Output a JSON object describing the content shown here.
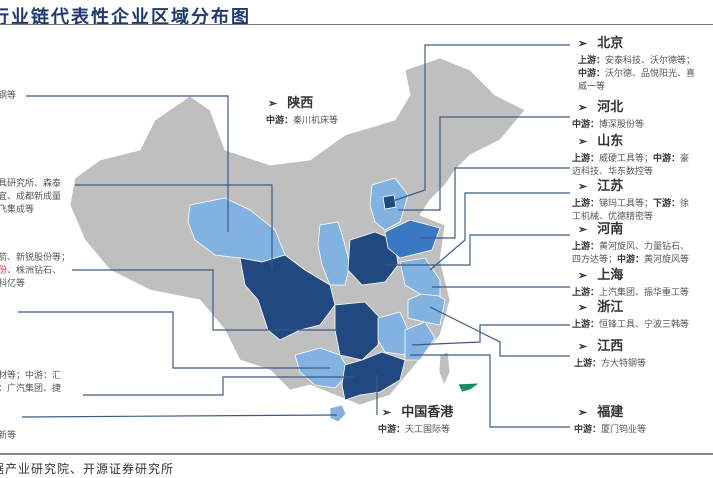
{
  "title": "行业链代表性企业区域分布图",
  "source": "据产业研究院、开源证券研究所",
  "colors": {
    "dark": "#21497f",
    "mid": "#3a78c3",
    "light": "#82b2e0",
    "gray": "#bfbfbf",
    "line": "#3b5a8a",
    "hk_green": "#1a8a6a"
  },
  "left_blocks": [
    {
      "lines": [
        "钢等"
      ]
    },
    {
      "lines": [
        "具研究所、森泰",
        "宜、成都新成量",
        "飞集成等"
      ]
    },
    {
      "lines": [
        "箭、新锐股份等；",
        "份、株洲钻石、",
        "科亿等"
      ],
      "highlight": "份、"
    },
    {
      "lines": [
        "材等；中游：汇",
        "：广汽集团、捷"
      ]
    },
    {
      "lines": [
        "新等"
      ]
    }
  ],
  "regions": [
    {
      "name": "陕西",
      "lines": [
        {
          "k": "中游：",
          "v": "秦川机床等"
        }
      ]
    },
    {
      "name": "北京",
      "lines": [
        {
          "k": "上游：",
          "v": "安泰科技、沃尔德等；"
        },
        {
          "k": "中游：",
          "v": "沃尔德、品悦阳光、喜"
        },
        {
          "k": "",
          "v": "威一等"
        }
      ]
    },
    {
      "name": "河北",
      "lines": [
        {
          "k": "中游：",
          "v": "博深股份等"
        }
      ]
    },
    {
      "name": "山东",
      "lines": [
        {
          "k": "上游：",
          "v": "威硬工具等；",
          "k2": "中游：",
          "v2": "豪"
        },
        {
          "k": "",
          "v": "迈科技、华东数控等"
        }
      ]
    },
    {
      "name": "江苏",
      "lines": [
        {
          "k": "上游：",
          "v": "锑玛工具等；",
          "k2": "下游：",
          "v2": "徐"
        },
        {
          "k": "",
          "v": "工机械、优德精密等"
        }
      ]
    },
    {
      "name": "河南",
      "lines": [
        {
          "k": "上游：",
          "v": "黄河旋风、力量钻石、"
        },
        {
          "k": "",
          "v": "四方达等；",
          "k2": "中游：",
          "v2": "黄河旋风等"
        }
      ]
    },
    {
      "name": "上海",
      "lines": [
        {
          "k": "上游：",
          "v": "上汽集团、振华重工等"
        }
      ]
    },
    {
      "name": "浙江",
      "lines": [
        {
          "k": "上游：",
          "v": "恒锋工具、宁波三韩等"
        }
      ]
    },
    {
      "name": "江西",
      "lines": [
        {
          "k": "上游：",
          "v": "方大特钢等"
        }
      ]
    },
    {
      "name": "福建",
      "lines": [
        {
          "k": "中游：",
          "v": "厦门钨业等"
        }
      ]
    },
    {
      "name": "中国香港",
      "lines": [
        {
          "k": "中游：",
          "v": "天工国际等"
        }
      ]
    }
  ],
  "arrow_icon": "➢"
}
